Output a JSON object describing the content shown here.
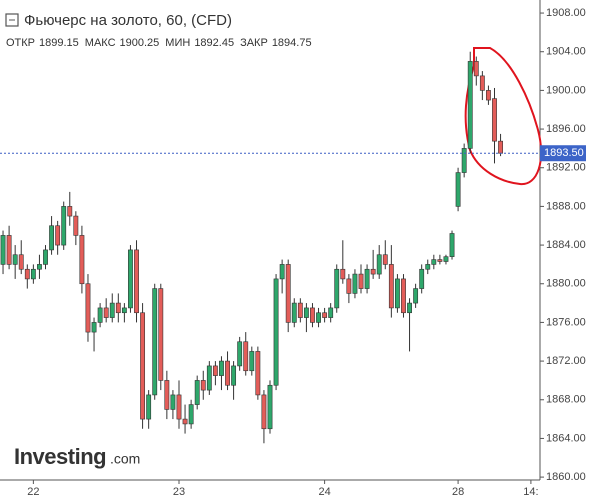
{
  "chart_data": {
    "type": "candlestick",
    "title": "Фьючерс на золото, 60, (CFD)",
    "ohlc_legend": [
      {
        "label": "ОТКР",
        "value": 1899.15
      },
      {
        "label": "МАКС",
        "value": 1900.25
      },
      {
        "label": "МИН",
        "value": 1892.45
      },
      {
        "label": "ЗАКР",
        "value": 1894.75
      }
    ],
    "last_price": {
      "value": 1893.5,
      "label": "1893.50"
    },
    "logo": {
      "main": "Investing",
      "suffix": ".com"
    },
    "up_color": "#2ea76b",
    "down_color": "#e35d59",
    "categories": [
      null,
      null,
      null,
      null,
      null,
      "22",
      null,
      null,
      null,
      null,
      null,
      null,
      null,
      null,
      null,
      null,
      null,
      null,
      null,
      null,
      null,
      null,
      null,
      null,
      null,
      null,
      null,
      null,
      null,
      "23",
      null,
      null,
      null,
      null,
      null,
      null,
      null,
      null,
      null,
      null,
      null,
      null,
      null,
      null,
      null,
      null,
      null,
      null,
      null,
      null,
      null,
      null,
      null,
      "24",
      null,
      null,
      null,
      null,
      null,
      null,
      null,
      null,
      null,
      null,
      null,
      null,
      null,
      null,
      null,
      null,
      null,
      null,
      null,
      null,
      null,
      "28",
      null,
      null,
      null,
      null,
      null,
      null,
      null,
      null,
      null,
      null,
      null,
      "14:",
      null
    ],
    "open": [
      1882,
      1885,
      1882,
      1883,
      1881.5,
      1880.5,
      1881.5,
      1882,
      1883.5,
      1886,
      1884,
      1888,
      1887,
      1885,
      1880,
      1875,
      1876,
      1877.5,
      1876.5,
      1878,
      1877,
      1877.5,
      1883.5,
      1877,
      1866,
      1868.5,
      1879.5,
      1870,
      1867,
      1868.5,
      1866,
      1865.5,
      1867.5,
      1870,
      1869,
      1871.5,
      1870.5,
      1872,
      1869.5,
      1871.5,
      1874,
      1871,
      1873,
      1868.5,
      1865,
      1869.5,
      1880.5,
      1882,
      1876,
      1878,
      1876.5,
      1877.5,
      1876,
      1877,
      1876.5,
      1877.5,
      1881.5,
      1880.5,
      1879,
      1881,
      1879.5,
      1881.5,
      1881,
      1883,
      1882,
      1877.5,
      1880.5,
      1877,
      1878,
      1879.5,
      1881.5,
      1882,
      1882.5,
      1882.3,
      1882.8,
      1888,
      1891.5,
      1894,
      1903,
      1901.5,
      1900,
      1899.15,
      1894.75,
      null,
      null,
      null,
      null,
      null,
      null
    ],
    "high": [
      1885.5,
      1886,
      1884,
      1884.5,
      1882,
      1882,
      1883,
      1884,
      1887,
      1886.5,
      1888.5,
      1889.5,
      1887.5,
      1886,
      1881,
      1876.5,
      1878,
      1878.5,
      1879,
      1879,
      1878,
      1884,
      1884.5,
      1878,
      1869,
      1880,
      1880,
      1871,
      1869,
      1870,
      1867.5,
      1868,
      1870.5,
      1871,
      1872,
      1872,
      1872.5,
      1873,
      1872,
      1874.5,
      1875,
      1873.5,
      1873.5,
      1869,
      1870,
      1881,
      1882.5,
      1882.5,
      1878.5,
      1878.5,
      1878,
      1878,
      1877.5,
      1877.5,
      1878,
      1882,
      1884.5,
      1881,
      1881.5,
      1882,
      1882,
      1883.5,
      1884,
      1884.5,
      1884,
      1881,
      1881,
      1878.5,
      1880,
      1882,
      1882.5,
      1883,
      1883,
      1883,
      1885.5,
      1892,
      1894.5,
      1904,
      1903.5,
      1902,
      1900.5,
      1900.25,
      1895.5,
      null,
      null,
      null,
      null,
      null,
      null
    ],
    "low": [
      1881,
      1881.5,
      1880.5,
      1881,
      1879.5,
      1880,
      1880.5,
      1881.5,
      1883,
      1883,
      1883.5,
      1886,
      1884,
      1879,
      1874,
      1873,
      1875.5,
      1876,
      1876,
      1876,
      1876,
      1877,
      1876,
      1865,
      1865,
      1868,
      1869,
      1866,
      1866,
      1865,
      1864.5,
      1865,
      1867,
      1868,
      1868.5,
      1869.5,
      1869,
      1869,
      1868,
      1871,
      1870.5,
      1870.5,
      1868,
      1863.5,
      1864.5,
      1869,
      1879,
      1875,
      1875.5,
      1876,
      1875,
      1875.5,
      1875.5,
      1876,
      1876,
      1877,
      1880,
      1878,
      1878.5,
      1879,
      1879,
      1880.5,
      1880.5,
      1881.5,
      1876.5,
      1877,
      1876.5,
      1873,
      1877.5,
      1879,
      1881,
      1881.5,
      1882,
      1882,
      1882.5,
      1887.5,
      1891,
      1893.5,
      1900.5,
      1899,
      1898.5,
      1892.45,
      1893.2,
      null,
      null,
      null,
      null,
      null,
      null
    ],
    "close": [
      1885,
      1882,
      1883,
      1881.5,
      1880.5,
      1881.5,
      1882,
      1883.5,
      1886,
      1884,
      1888,
      1887,
      1885,
      1880,
      1875,
      1876,
      1877.5,
      1876.5,
      1878,
      1877,
      1877.5,
      1883.5,
      1877,
      1866,
      1868.5,
      1879.5,
      1870,
      1867,
      1868.5,
      1866,
      1865.5,
      1867.5,
      1870,
      1869,
      1871.5,
      1870.5,
      1872,
      1869.5,
      1871.5,
      1874,
      1871,
      1873,
      1868.5,
      1865,
      1869.5,
      1880.5,
      1882,
      1876,
      1878,
      1876.5,
      1877.5,
      1876,
      1877,
      1876.5,
      1877.5,
      1881.5,
      1880.5,
      1879,
      1881,
      1879.5,
      1881.5,
      1881,
      1883,
      1882,
      1877.5,
      1880.5,
      1877,
      1878,
      1879.5,
      1881.5,
      1882,
      1882.5,
      1882.3,
      1882.8,
      1885.2,
      1891.5,
      1894,
      1903,
      1901.5,
      1900,
      1899,
      1894.75,
      1893.5,
      null,
      null,
      null,
      null,
      null,
      null
    ],
    "ylim": [
      1859.7,
      1909.35
    ],
    "yticks": [
      {
        "value": 1860,
        "label": "1860.00"
      },
      {
        "value": 1864,
        "label": "1864.00"
      },
      {
        "value": 1868,
        "label": "1868.00"
      },
      {
        "value": 1872,
        "label": "1872.00"
      },
      {
        "value": 1876,
        "label": "1876.00"
      },
      {
        "value": 1880,
        "label": "1880.00"
      },
      {
        "value": 1884,
        "label": "1884.00"
      },
      {
        "value": 1888,
        "label": "1888.00"
      },
      {
        "value": 1892,
        "label": "1892.00"
      },
      {
        "value": 1896,
        "label": "1896.00"
      },
      {
        "value": 1900,
        "label": "1900.00"
      },
      {
        "value": 1904,
        "label": "1904.00"
      },
      {
        "value": 1908,
        "label": "1908.00"
      }
    ],
    "grid": false
  }
}
